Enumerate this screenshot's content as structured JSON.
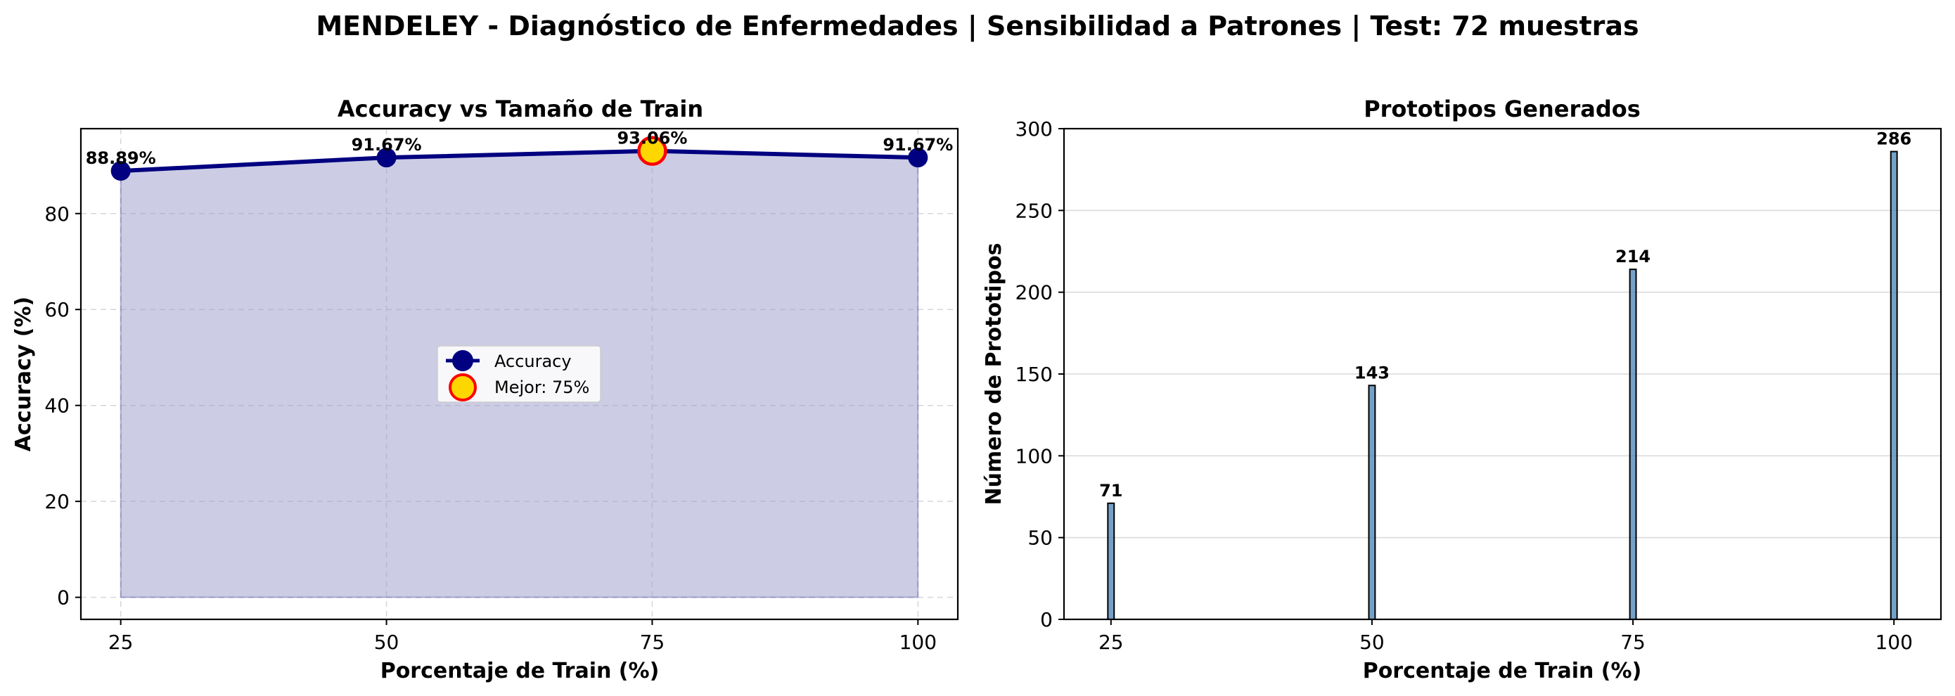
{
  "suptitle": "MENDELEY - Diagnóstico de Enfermedades | Sensibilidad a Patrones | Test: 72 muestras",
  "chart_data": [
    {
      "type": "line",
      "title": "Accuracy vs Tamaño de Train",
      "xlabel": "Porcentaje de Train (%)",
      "ylabel": "Accuracy (%)",
      "x": [
        25,
        50,
        75,
        100
      ],
      "xticks": [
        "25",
        "50",
        "75",
        "100"
      ],
      "yticks": [
        "0",
        "20",
        "40",
        "60",
        "80"
      ],
      "xlim": [
        21.25,
        103.75
      ],
      "ylim": [
        -4.6,
        97.7
      ],
      "series": [
        {
          "name": "Accuracy",
          "values": [
            88.89,
            91.67,
            93.06,
            91.67
          ],
          "labels": [
            "88.89%",
            "91.67%",
            "93.06%",
            "91.67%"
          ]
        }
      ],
      "highlight": {
        "name": "Mejor: 75%",
        "x": 75,
        "y": 93.06
      },
      "fill_under": true,
      "grid": true,
      "legend_position": "center",
      "colors": {
        "line": "#000080",
        "marker": "#000080",
        "fill": "#9999cc",
        "best_face": "#ffd700",
        "best_edge": "#ff0000"
      }
    },
    {
      "type": "bar",
      "title": "Prototipos Generados",
      "xlabel": "Porcentaje de Train (%)",
      "ylabel": "Número de Prototipos",
      "x": [
        25,
        50,
        75,
        100
      ],
      "values": [
        71,
        143,
        214,
        286
      ],
      "labels": [
        "71",
        "143",
        "214",
        "286"
      ],
      "xticks": [
        "25",
        "50",
        "75",
        "100"
      ],
      "yticks": [
        "0",
        "50",
        "100",
        "150",
        "200",
        "250",
        "300"
      ],
      "xlim": [
        20.5,
        104.5
      ],
      "ylim": [
        0,
        300
      ],
      "grid": "y",
      "colors": {
        "bar": "#4682b4",
        "edge": "#000000"
      }
    }
  ]
}
